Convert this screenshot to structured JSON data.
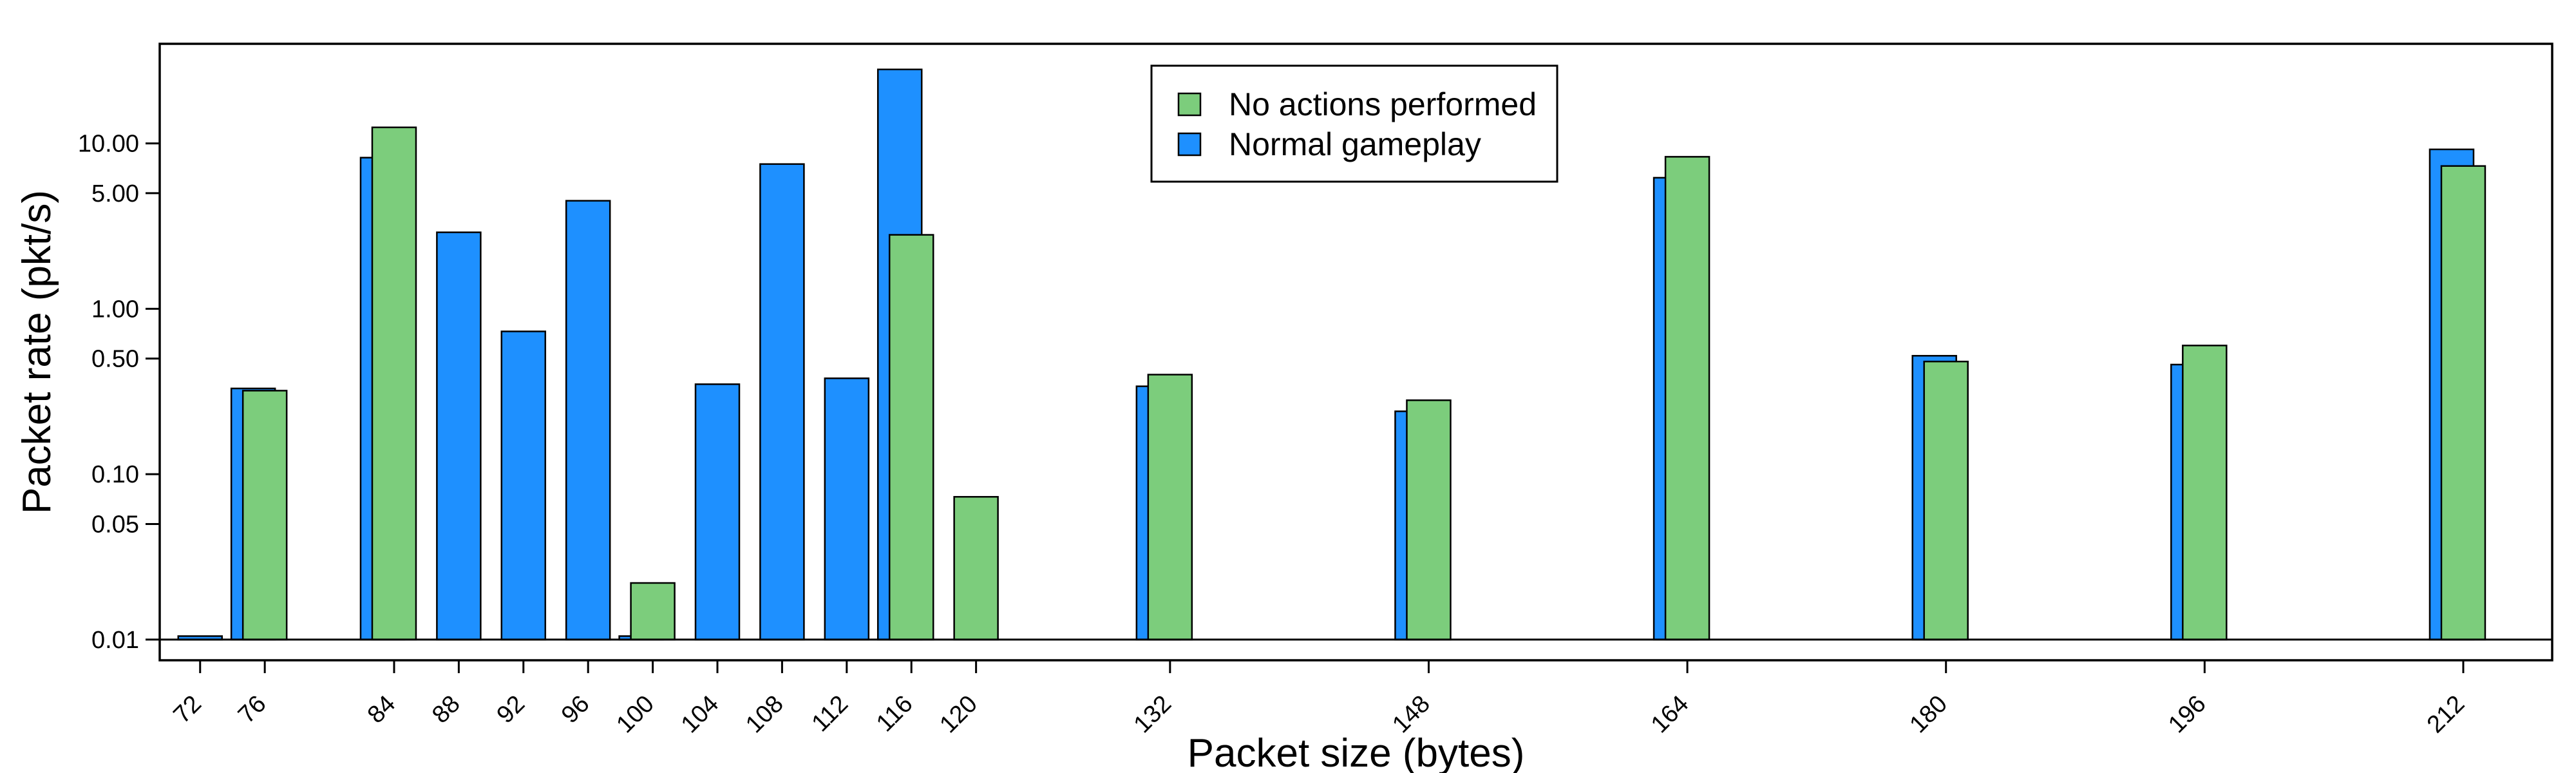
{
  "chart_data": {
    "type": "bar",
    "xlabel": "Packet size (bytes)",
    "ylabel": "Packet rate (pkt/s)",
    "yscale": "log",
    "ylim": [
      0.0075,
      40
    ],
    "baseline": 0.01,
    "categories": [
      72,
      76,
      84,
      88,
      92,
      96,
      100,
      104,
      108,
      112,
      116,
      120,
      132,
      148,
      164,
      180,
      196,
      212
    ],
    "x_tick_labels": [
      "72",
      "76",
      "84",
      "88",
      "92",
      "96",
      "100",
      "104",
      "108",
      "112",
      "116",
      "120",
      "132",
      "148",
      "164",
      "180",
      "196",
      "212"
    ],
    "y_ticks": [
      0.01,
      0.05,
      0.1,
      0.5,
      1.0,
      5.0,
      10.0
    ],
    "y_tick_labels": [
      "0.01",
      "0.05",
      "0.10",
      "0.50",
      "1.00",
      "5.00",
      "10.00"
    ],
    "legend_position": "top-center",
    "grid": false,
    "series": [
      {
        "name": "Normal gameplay",
        "color": "#1e90ff",
        "values": [
          0.0105,
          0.33,
          8.2,
          2.9,
          0.73,
          4.5,
          0.0105,
          0.35,
          7.5,
          0.38,
          28,
          null,
          0.34,
          0.24,
          6.2,
          0.52,
          0.46,
          9.2
        ]
      },
      {
        "name": "No actions performed",
        "color": "#7ccd7c",
        "values": [
          null,
          0.32,
          12.5,
          null,
          null,
          null,
          0.022,
          null,
          null,
          null,
          2.8,
          0.073,
          0.4,
          0.28,
          8.3,
          0.48,
          0.6,
          7.3
        ]
      }
    ],
    "single_series_color": "#1e90ff"
  }
}
